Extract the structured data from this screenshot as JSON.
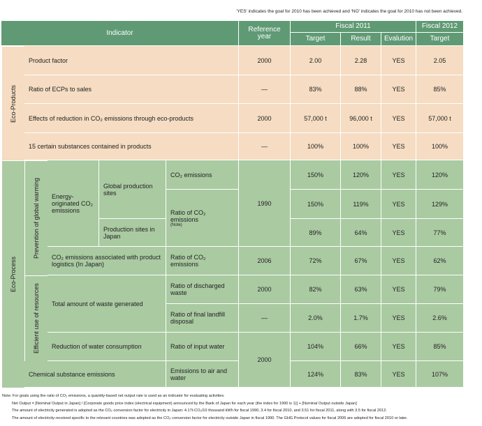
{
  "note_top": "'YES' indicates the goal for 2010 has been achieved and 'NO' indicates the goal for 2010 has not been achieved.",
  "header": {
    "indicator": "Indicator",
    "reference_year": "Reference year",
    "fiscal_2011": "Fiscal 2011",
    "fiscal_2012": "Fiscal 2012",
    "target_2011": "Target",
    "result_2011": "Result",
    "evaluation": "Evalution",
    "target_2012": "Target"
  },
  "eco_products": {
    "label": "Eco-Products",
    "rows": [
      {
        "indicator": "Product factor",
        "reference_year": "2000",
        "target_2011": "2.00",
        "result_2011": "2.28",
        "evaluation": "YES",
        "target_2012": "2.05"
      },
      {
        "indicator": "Ratio of ECPs to sales",
        "reference_year": "—",
        "target_2011": "83%",
        "result_2011": "88%",
        "evaluation": "YES",
        "target_2012": "85%"
      },
      {
        "indicator": "Effects of reduction in CO₂ emissions through eco-products",
        "reference_year": "2000",
        "target_2011": "57,000 t",
        "result_2011": "96,000 t",
        "evaluation": "YES",
        "target_2012": "57,000 t"
      },
      {
        "indicator": "15 certain substances contained in products",
        "reference_year": "—",
        "target_2011": "100%",
        "result_2011": "100%",
        "evaluation": "YES",
        "target_2012": "100%"
      }
    ]
  },
  "eco_process": {
    "label": "Eco-Process",
    "prevention_label": "Prevention of global warming",
    "resources_label": "Efficient use of resources",
    "energy_label": "Energy-originated CO₂ emissions",
    "global_sites": "Global production sites",
    "japan_sites": "Production sites in Japan",
    "logistics": "CO₂ emissions associated with product logistics (In Japan)",
    "waste": "Total amount of waste generated",
    "water": "Reduction of water consumption",
    "chemical": "Chemical substance emissions",
    "rows": [
      {
        "indicator": "CO₂ emissions",
        "reference_year": "1990",
        "target_2011": "150%",
        "result_2011": "120%",
        "evaluation": "YES",
        "target_2012": "120%"
      },
      {
        "indicator": "Ratio of CO₂ emissions",
        "indicator_note": "(Note)",
        "target_2011": "150%",
        "result_2011": "119%",
        "evaluation": "YES",
        "target_2012": "129%"
      },
      {
        "target_2011": "89%",
        "result_2011": "64%",
        "evaluation": "YES",
        "target_2012": "77%"
      },
      {
        "indicator": "Ratio of CO₂ emissions",
        "reference_year": "2006",
        "target_2011": "72%",
        "result_2011": "67%",
        "evaluation": "YES",
        "target_2012": "62%"
      },
      {
        "indicator": "Ratio of discharged waste",
        "reference_year": "2000",
        "target_2011": "82%",
        "result_2011": "63%",
        "evaluation": "YES",
        "target_2012": "79%"
      },
      {
        "indicator": "Ratio of final landfill disposal",
        "reference_year": "—",
        "target_2011": "2.0%",
        "result_2011": "1.7%",
        "evaluation": "YES",
        "target_2012": "2.6%"
      },
      {
        "indicator": "Ratio of input water",
        "reference_year": "2000",
        "target_2011": "104%",
        "result_2011": "66%",
        "evaluation": "YES",
        "target_2012": "85%"
      },
      {
        "indicator": "Emissions to air and water",
        "target_2011": "124%",
        "result_2011": "83%",
        "evaluation": "YES",
        "target_2012": "107%"
      }
    ]
  },
  "footnotes": [
    "Note: For goals using the ratio of CO₂ emissions, a quantity-based net output rate is used as an indicator for evaluating activities.",
    "Net Output = [Nominal Output in Japan] / [Corporate goods price index (electrical equipment) announced by the Bank of Japan for each year (the index for 1990 is 1)] + [Nominal Output outside Japan]",
    "The amount of electricity generated is adopted as the CO₂ conversion factor for electricity in Japan: 4.17t-CO₂/10 thousand kWh for fiscal 1990, 3.4 for fiscal 2010, and 3.51 for fiscal 2011, along with 3.5 for fiscal 2012.",
    "The amount of electricity-received specific to the relevant countries was adopted as the CO₂ conversion factor for electricity outside Japan in fiscal 1990. The GHG Protocol values for fiscal 2006 are adopted for fiscal 2010 or later."
  ]
}
